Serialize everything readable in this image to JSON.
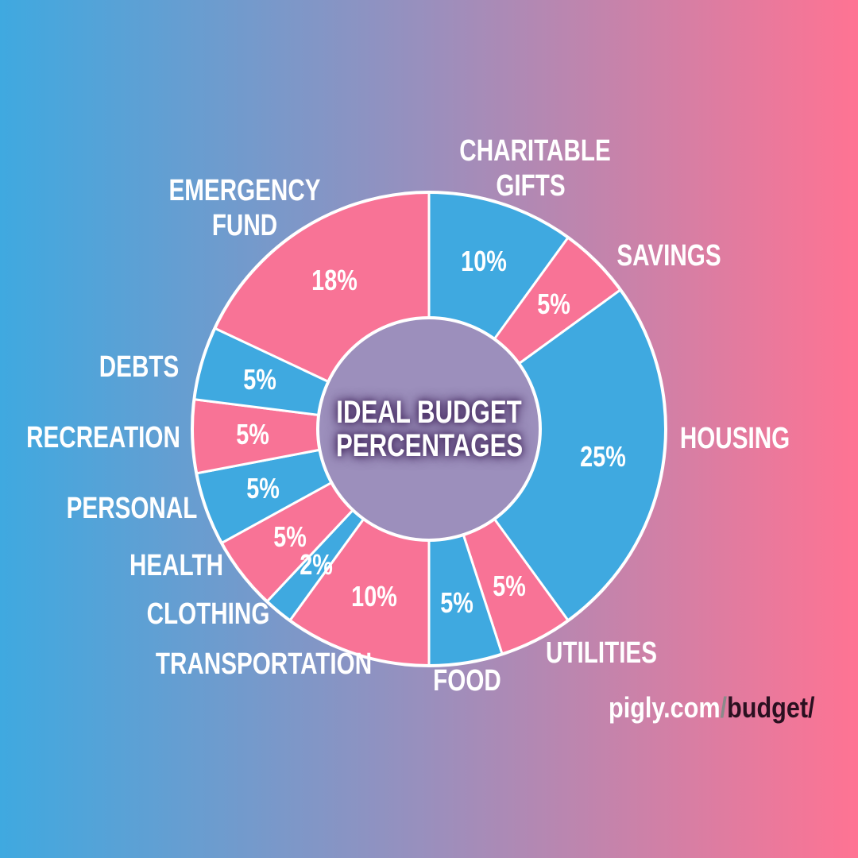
{
  "chart_data": {
    "type": "donut",
    "title": "IDEAL BUDGET PERCENTAGES",
    "categories": [
      "CHARITABLE GIFTS",
      "SAVINGS",
      "HOUSING",
      "UTILITIES",
      "FOOD",
      "TRANSPORTATION",
      "CLOTHING",
      "HEALTH",
      "PERSONAL",
      "RECREATION",
      "DEBTS",
      "EMERGENCY FUND"
    ],
    "values": [
      10,
      5,
      25,
      5,
      5,
      10,
      2,
      5,
      5,
      5,
      5,
      18
    ],
    "value_labels": [
      "10%",
      "5%",
      "25%",
      "5%",
      "5%",
      "10%",
      "2%",
      "5%",
      "5%",
      "5%",
      "5%",
      "18%"
    ],
    "colors": [
      "#3fa9e0",
      "#f87396",
      "#3fa9e0",
      "#f87396",
      "#3fa9e0",
      "#f87396",
      "#3fa9e0",
      "#f87396",
      "#3fa9e0",
      "#f87396",
      "#3fa9e0",
      "#f87396"
    ]
  },
  "footer": {
    "site": "pigly.com",
    "separator": "/",
    "path": "budget/"
  }
}
